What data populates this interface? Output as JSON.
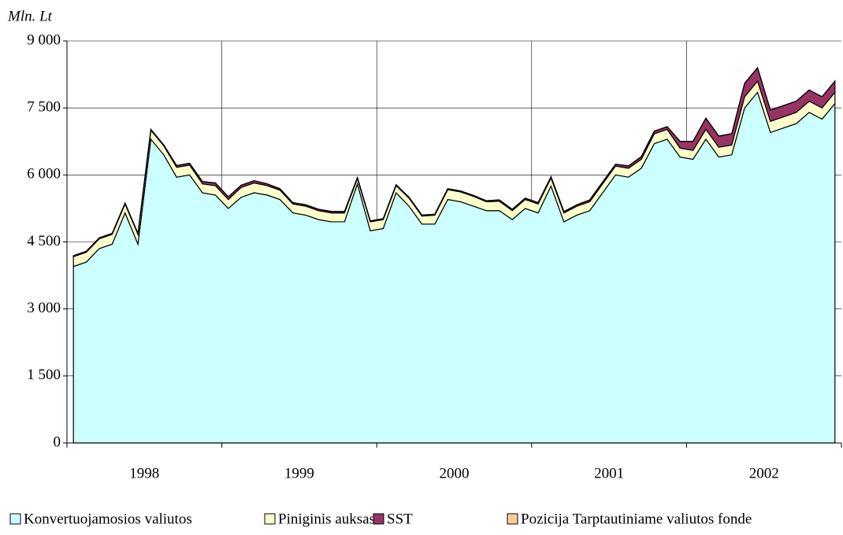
{
  "chart_data": {
    "type": "stacked_area",
    "y_label": "Mln. Lt",
    "categories": [
      null,
      null,
      null,
      null,
      null,
      null,
      "1998",
      null,
      null,
      null,
      null,
      null,
      null,
      null,
      null,
      null,
      null,
      null,
      "1999",
      null,
      null,
      null,
      null,
      null,
      null,
      null,
      null,
      null,
      null,
      null,
      "2000",
      null,
      null,
      null,
      null,
      null,
      null,
      null,
      null,
      null,
      null,
      null,
      "2001",
      null,
      null,
      null,
      null,
      null,
      null,
      null,
      null,
      null,
      null,
      null,
      "2002",
      null,
      null,
      null,
      null,
      null
    ],
    "series": [
      {
        "name": "Konvertuojamosios valiutos",
        "color": "#ccffff",
        "values": [
          3950,
          4050,
          4350,
          4450,
          5150,
          4450,
          6800,
          6450,
          5950,
          6000,
          5600,
          5550,
          5250,
          5500,
          5600,
          5550,
          5450,
          5150,
          5100,
          5000,
          4950,
          4950,
          5800,
          4750,
          4800,
          5600,
          5300,
          4900,
          4900,
          5450,
          5400,
          5300,
          5200,
          5200,
          5000,
          5250,
          5150,
          5750,
          4950,
          5100,
          5200,
          5600,
          6000,
          5950,
          6150,
          6700,
          6800,
          6400,
          6350,
          6800,
          6400,
          6450,
          7500,
          7850,
          6950,
          7050,
          7150,
          7400,
          7250,
          7600
        ]
      },
      {
        "name": "Piniginis auksas",
        "color": "#ffffcc",
        "values": [
          220,
          220,
          220,
          220,
          200,
          220,
          200,
          200,
          220,
          220,
          200,
          210,
          200,
          220,
          220,
          210,
          210,
          200,
          200,
          200,
          200,
          200,
          120,
          200,
          200,
          160,
          180,
          180,
          200,
          220,
          220,
          220,
          200,
          210,
          200,
          200,
          200,
          180,
          200,
          200,
          200,
          200,
          200,
          200,
          200,
          220,
          220,
          200,
          200,
          220,
          220,
          220,
          250,
          250,
          250,
          250,
          250,
          250,
          250,
          250
        ]
      },
      {
        "name": "SST",
        "color": "#993366",
        "values": [
          20,
          20,
          20,
          20,
          20,
          20,
          20,
          20,
          40,
          40,
          50,
          60,
          60,
          50,
          50,
          40,
          30,
          30,
          30,
          30,
          30,
          30,
          20,
          20,
          20,
          20,
          20,
          20,
          20,
          20,
          20,
          20,
          20,
          30,
          30,
          30,
          30,
          30,
          30,
          30,
          40,
          40,
          40,
          50,
          60,
          60,
          60,
          150,
          200,
          250,
          250,
          250,
          300,
          300,
          250,
          250,
          250,
          250,
          250,
          250
        ]
      },
      {
        "name": "Pozicija Tarptautiniame valiutos fonde",
        "color": "#ffcc99",
        "values": [
          2,
          2,
          2,
          2,
          2,
          2,
          2,
          2,
          2,
          2,
          2,
          2,
          2,
          2,
          2,
          2,
          2,
          2,
          2,
          2,
          2,
          2,
          2,
          2,
          2,
          2,
          2,
          2,
          2,
          2,
          2,
          2,
          2,
          2,
          2,
          2,
          2,
          2,
          2,
          2,
          2,
          2,
          2,
          2,
          2,
          2,
          2,
          2,
          2,
          2,
          2,
          2,
          2,
          2,
          2,
          2,
          2,
          2,
          2,
          2
        ]
      }
    ],
    "ylim": [
      0,
      9000
    ],
    "yticks": [
      0,
      {
        "value": 1500,
        "label": "1 500"
      },
      {
        "value": 3000,
        "label": "3 000"
      },
      {
        "value": 4500,
        "label": "4 500"
      },
      {
        "value": 6000,
        "label": "6 000"
      },
      {
        "value": 7500,
        "label": "7 500"
      },
      {
        "value": 9000,
        "label": "9 000"
      }
    ],
    "grid": true
  }
}
